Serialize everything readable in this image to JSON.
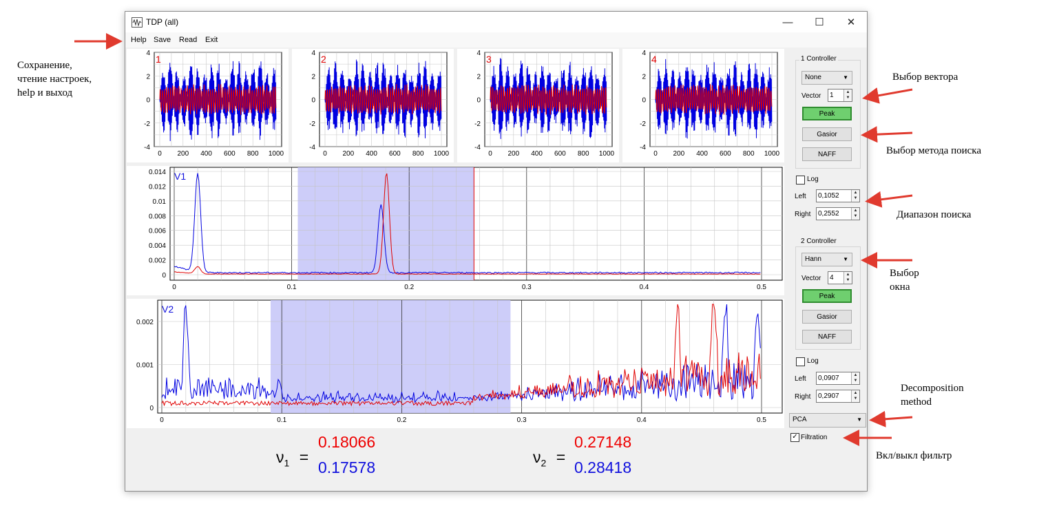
{
  "window": {
    "title": "TDP (all)",
    "btn_min": "—",
    "btn_max": "☐",
    "btn_close": "✕"
  },
  "menu": {
    "help": "Help",
    "save": "Save",
    "read": "Read",
    "exit": "Exit"
  },
  "small_plots": [
    {
      "num": "1",
      "y_ticks": [
        "4",
        "2",
        "0",
        "-2",
        "-4"
      ],
      "x_ticks": [
        "0",
        "200",
        "400",
        "600",
        "800",
        "1000"
      ]
    },
    {
      "num": "2",
      "y_ticks": [
        "4",
        "2",
        "0",
        "-2",
        "-4"
      ],
      "x_ticks": [
        "0",
        "200",
        "400",
        "600",
        "800",
        "1000"
      ]
    },
    {
      "num": "3",
      "y_ticks": [
        "4",
        "2",
        "0",
        "-2",
        "-4"
      ],
      "x_ticks": [
        "0",
        "200",
        "400",
        "600",
        "800",
        "1000"
      ]
    },
    {
      "num": "4",
      "y_ticks": [
        "4",
        "2",
        "0",
        "-2",
        "-4"
      ],
      "x_ticks": [
        "0",
        "200",
        "400",
        "600",
        "800",
        "1000"
      ]
    }
  ],
  "spectrum1": {
    "label": "V1",
    "y_ticks": [
      "0.014",
      "0.012",
      "0.01",
      "0.008",
      "0.006",
      "0.004",
      "0.002",
      "0"
    ],
    "x_ticks": [
      "0",
      "0.1",
      "0.2",
      "0.3",
      "0.4",
      "0.5"
    ]
  },
  "spectrum2": {
    "label": "V2",
    "y_ticks": [
      "0.002",
      "0.001",
      "0"
    ],
    "x_ticks": [
      "0",
      "0.1",
      "0.2",
      "0.3",
      "0.4",
      "0.5"
    ]
  },
  "chart_data": [
    {
      "type": "line",
      "title": "1",
      "x_range": [
        0,
        1000
      ],
      "ylim": [
        -4,
        4
      ],
      "series": [
        {
          "name": "",
          "color": "#0000e0"
        },
        {
          "name": "",
          "color": "#e00000"
        }
      ]
    },
    {
      "type": "line",
      "title": "2",
      "x_range": [
        0,
        1000
      ],
      "ylim": [
        -4,
        4
      ],
      "series": [
        {
          "name": "",
          "color": "#0000e0"
        },
        {
          "name": "",
          "color": "#e00000"
        }
      ]
    },
    {
      "type": "line",
      "title": "3",
      "x_range": [
        0,
        1000
      ],
      "ylim": [
        -4,
        4
      ],
      "series": [
        {
          "name": "",
          "color": "#0000e0"
        },
        {
          "name": "",
          "color": "#e00000"
        }
      ]
    },
    {
      "type": "line",
      "title": "4",
      "x_range": [
        0,
        1000
      ],
      "ylim": [
        -4,
        4
      ],
      "series": [
        {
          "name": "",
          "color": "#0000e0"
        },
        {
          "name": "",
          "color": "#e00000"
        }
      ]
    },
    {
      "type": "line",
      "title": "V1",
      "xlim": [
        0,
        0.5
      ],
      "ylim": [
        0,
        0.014
      ],
      "selection": [
        0.1052,
        0.2552
      ],
      "series": [
        {
          "name": "",
          "color": "#0000e0",
          "peaks": [
            {
              "x": 0.02,
              "y": 0.0135
            },
            {
              "x": 0.176,
              "y": 0.0093
            }
          ],
          "baseline": 0.0003
        },
        {
          "name": "",
          "color": "#e00000",
          "peaks": [
            {
              "x": 0.02,
              "y": 0.001
            },
            {
              "x": 0.1807,
              "y": 0.0137
            }
          ],
          "baseline": 0.0001
        }
      ]
    },
    {
      "type": "line",
      "title": "V2",
      "xlim": [
        0,
        0.5
      ],
      "ylim": [
        0,
        0.0024
      ],
      "selection": [
        0.0907,
        0.2907
      ],
      "series": [
        {
          "name": "",
          "color": "#0000e0",
          "peaks": [
            {
              "x": 0.02,
              "y": 0.0024
            },
            {
              "x": 0.47,
              "y": 0.0024
            },
            {
              "x": 0.497,
              "y": 0.0019
            }
          ]
        },
        {
          "name": "",
          "color": "#e00000",
          "peaks": [
            {
              "x": 0.43,
              "y": 0.0022
            },
            {
              "x": 0.46,
              "y": 0.0023
            }
          ]
        }
      ]
    }
  ],
  "controller1": {
    "title": "1 Controller",
    "combo": "None",
    "vector_label": "Vector",
    "vector": "1",
    "peak": "Peak",
    "gasior": "Gasior",
    "naff": "NAFF",
    "log": "Log",
    "left_label": "Left",
    "left": "0,1052",
    "right_label": "Right",
    "right": "0,2552"
  },
  "controller2": {
    "title": "2 Controller",
    "combo": "Hann",
    "vector_label": "Vector",
    "vector": "4",
    "peak": "Peak",
    "gasior": "Gasior",
    "naff": "NAFF",
    "log": "Log",
    "left_label": "Left",
    "left": "0,0907",
    "right_label": "Right",
    "right": "0,2907"
  },
  "decomposition": {
    "combo": "PCA",
    "filtration_label": "Filtration",
    "filtration_checked": "✓"
  },
  "results": {
    "nu1_symbol": "ν",
    "nu1_sub": "1",
    "nu2_symbol": "ν",
    "nu2_sub": "2",
    "eq": "=",
    "nu1_red": "0.18066",
    "nu1_blue": "0.17578",
    "nu2_red": "0.27148",
    "nu2_blue": "0.28418",
    "red_color": "#ee0000",
    "blue_color": "#1010dd"
  },
  "annotations": {
    "save_read": [
      "Сохранение,",
      "чтение настроек,",
      "help  и выход"
    ],
    "vector_choice": "Выбор вектора",
    "method_choice": "Выбор метода поиска",
    "range": "Диапазон поиска",
    "window_choice": [
      "Выбор",
      "окна"
    ],
    "decomposition": [
      "Decomposition",
      "method"
    ],
    "filter_toggle": "Вкл/выкл фильтр"
  }
}
